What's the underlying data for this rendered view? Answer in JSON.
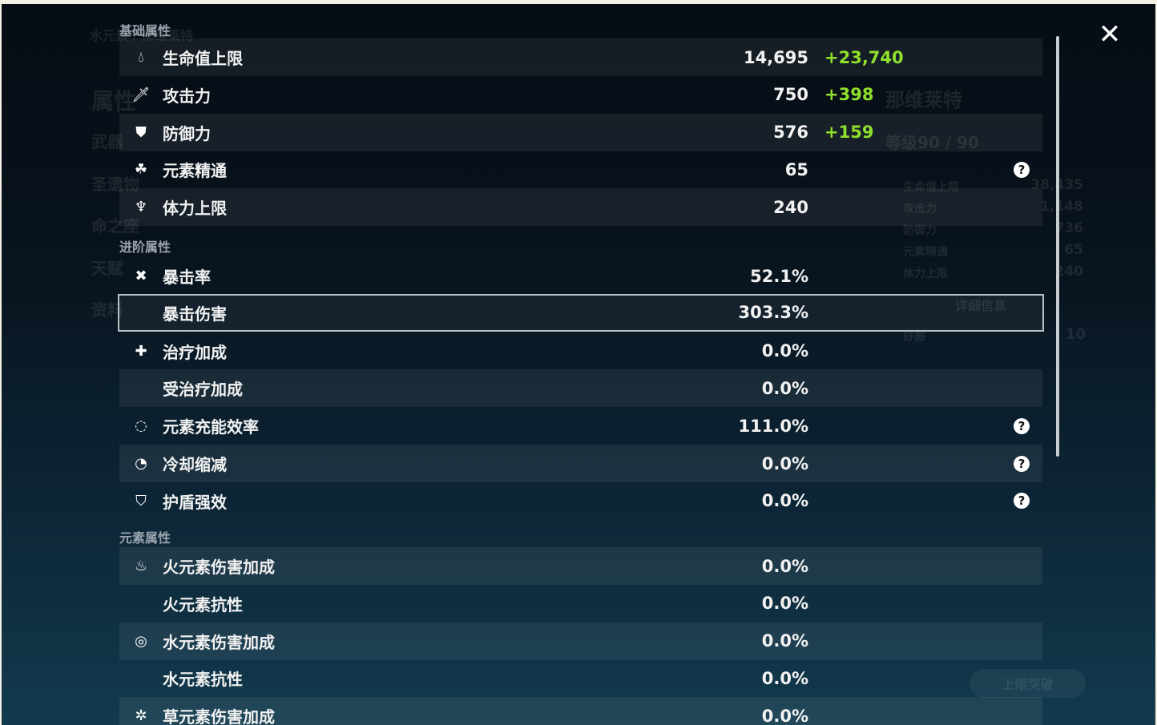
{
  "background": {
    "element_title": "水元素 / 那维莱特",
    "side_menu": [
      "属性",
      "武器",
      "圣遗物",
      "命之座",
      "天赋",
      "资料"
    ],
    "character_name": "那维莱特",
    "level": "等级90 / 90",
    "summary_stats": [
      {
        "label": "生命值上限",
        "value": "38,435"
      },
      {
        "label": "攻击力",
        "value": "1,148"
      },
      {
        "label": "防御力",
        "value": "736"
      },
      {
        "label": "元素精通",
        "value": "65"
      },
      {
        "label": "体力上限",
        "value": "240"
      }
    ],
    "details_button": "详细信息",
    "friendship": {
      "label": "好感",
      "value": "10"
    },
    "ascend_button": "上限突破"
  },
  "sections": [
    {
      "title": "基础属性",
      "rows": [
        {
          "icon": "hp-drop-icon",
          "label": "生命值上限",
          "value": "14,695",
          "bonus": "+23,740"
        },
        {
          "icon": "sword-icon",
          "label": "攻击力",
          "value": "750",
          "bonus": "+398"
        },
        {
          "icon": "shield-icon",
          "label": "防御力",
          "value": "576",
          "bonus": "+159"
        },
        {
          "icon": "elemental-mastery-icon",
          "label": "元素精通",
          "value": "65",
          "help": true
        },
        {
          "icon": "stamina-icon",
          "label": "体力上限",
          "value": "240"
        }
      ]
    },
    {
      "title": "进阶属性",
      "rows": [
        {
          "icon": "crit-rate-icon",
          "label": "暴击率",
          "value": "52.1%"
        },
        {
          "icon": "crit-dmg-icon",
          "label": "暴击伤害",
          "value": "303.3%",
          "selected": true
        },
        {
          "icon": "healing-icon",
          "label": "治疗加成",
          "value": "0.0%"
        },
        {
          "icon": "",
          "label": "受治疗加成",
          "value": "0.0%"
        },
        {
          "icon": "energy-recharge-icon",
          "label": "元素充能效率",
          "value": "111.0%",
          "help": true
        },
        {
          "icon": "cooldown-icon",
          "label": "冷却缩减",
          "value": "0.0%",
          "help": true
        },
        {
          "icon": "shield-strength-icon",
          "label": "护盾强效",
          "value": "0.0%",
          "help": true
        }
      ]
    },
    {
      "title": "元素属性",
      "rows": [
        {
          "icon": "pyro-icon",
          "label": "火元素伤害加成",
          "value": "0.0%"
        },
        {
          "icon": "",
          "label": "火元素抗性",
          "value": "0.0%"
        },
        {
          "icon": "hydro-icon",
          "label": "水元素伤害加成",
          "value": "0.0%"
        },
        {
          "icon": "",
          "label": "水元素抗性",
          "value": "0.0%"
        },
        {
          "icon": "dendro-icon",
          "label": "草元素伤害加成",
          "value": "0.0%"
        }
      ]
    }
  ],
  "colors": {
    "bonus": "#8fe02d",
    "selected_border": "#b9bfc4"
  }
}
